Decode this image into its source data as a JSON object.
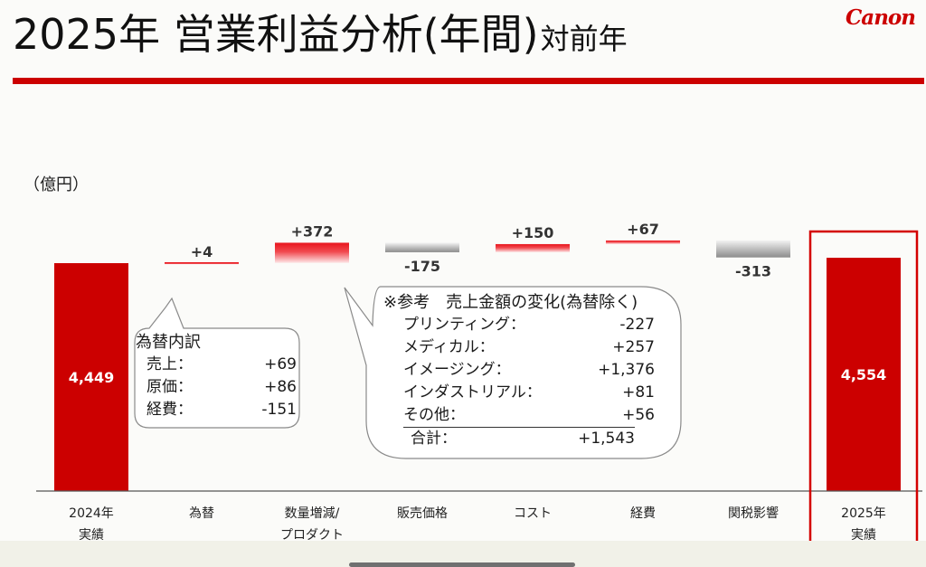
{
  "header": {
    "title": "2025年 営業利益分析(年間)",
    "title_suffix": "対前年",
    "logo_text": "Canon"
  },
  "chart_data": {
    "type": "bar",
    "unit_label": "（億円）",
    "categories": [
      "2024年\n実績",
      "為替",
      "数量増減/\nプロダクト",
      "販売価格",
      "コスト",
      "経費",
      "関税影響",
      "2025年\n実績"
    ],
    "values": [
      4449,
      4,
      372,
      -175,
      150,
      67,
      -313,
      4554
    ],
    "value_labels": [
      "4,449",
      "+4",
      "+372",
      "-175",
      "+150",
      "+67",
      "-313",
      "4,554"
    ],
    "kinds": [
      "total",
      "delta",
      "delta",
      "delta",
      "delta",
      "delta",
      "delta",
      "total"
    ],
    "highlighted_category": "2025年\n実績",
    "colors": {
      "total": "#cc0000",
      "increase": "#e8141c",
      "decrease": "#9a9a9a",
      "highlight_frame": "#d40000",
      "baseline": "#555555"
    }
  },
  "currency_callout": {
    "title": "為替内訳",
    "rows": [
      {
        "label": "売上：",
        "value": "+69"
      },
      {
        "label": "原価：",
        "value": "+86"
      },
      {
        "label": "経費：",
        "value": "-151"
      }
    ]
  },
  "reference_callout": {
    "title": "※参考　売上金額の変化(為替除く)",
    "rows": [
      {
        "label": "プリンティング：",
        "value": "-227"
      },
      {
        "label": "メディカル：",
        "value": "+257"
      },
      {
        "label": "イメージング：",
        "value": "+1,376"
      },
      {
        "label": "インダストリアル：",
        "value": "+81"
      },
      {
        "label": "その他：",
        "value": "+56"
      }
    ],
    "total": {
      "label": "合計：",
      "value": "+1,543"
    }
  }
}
